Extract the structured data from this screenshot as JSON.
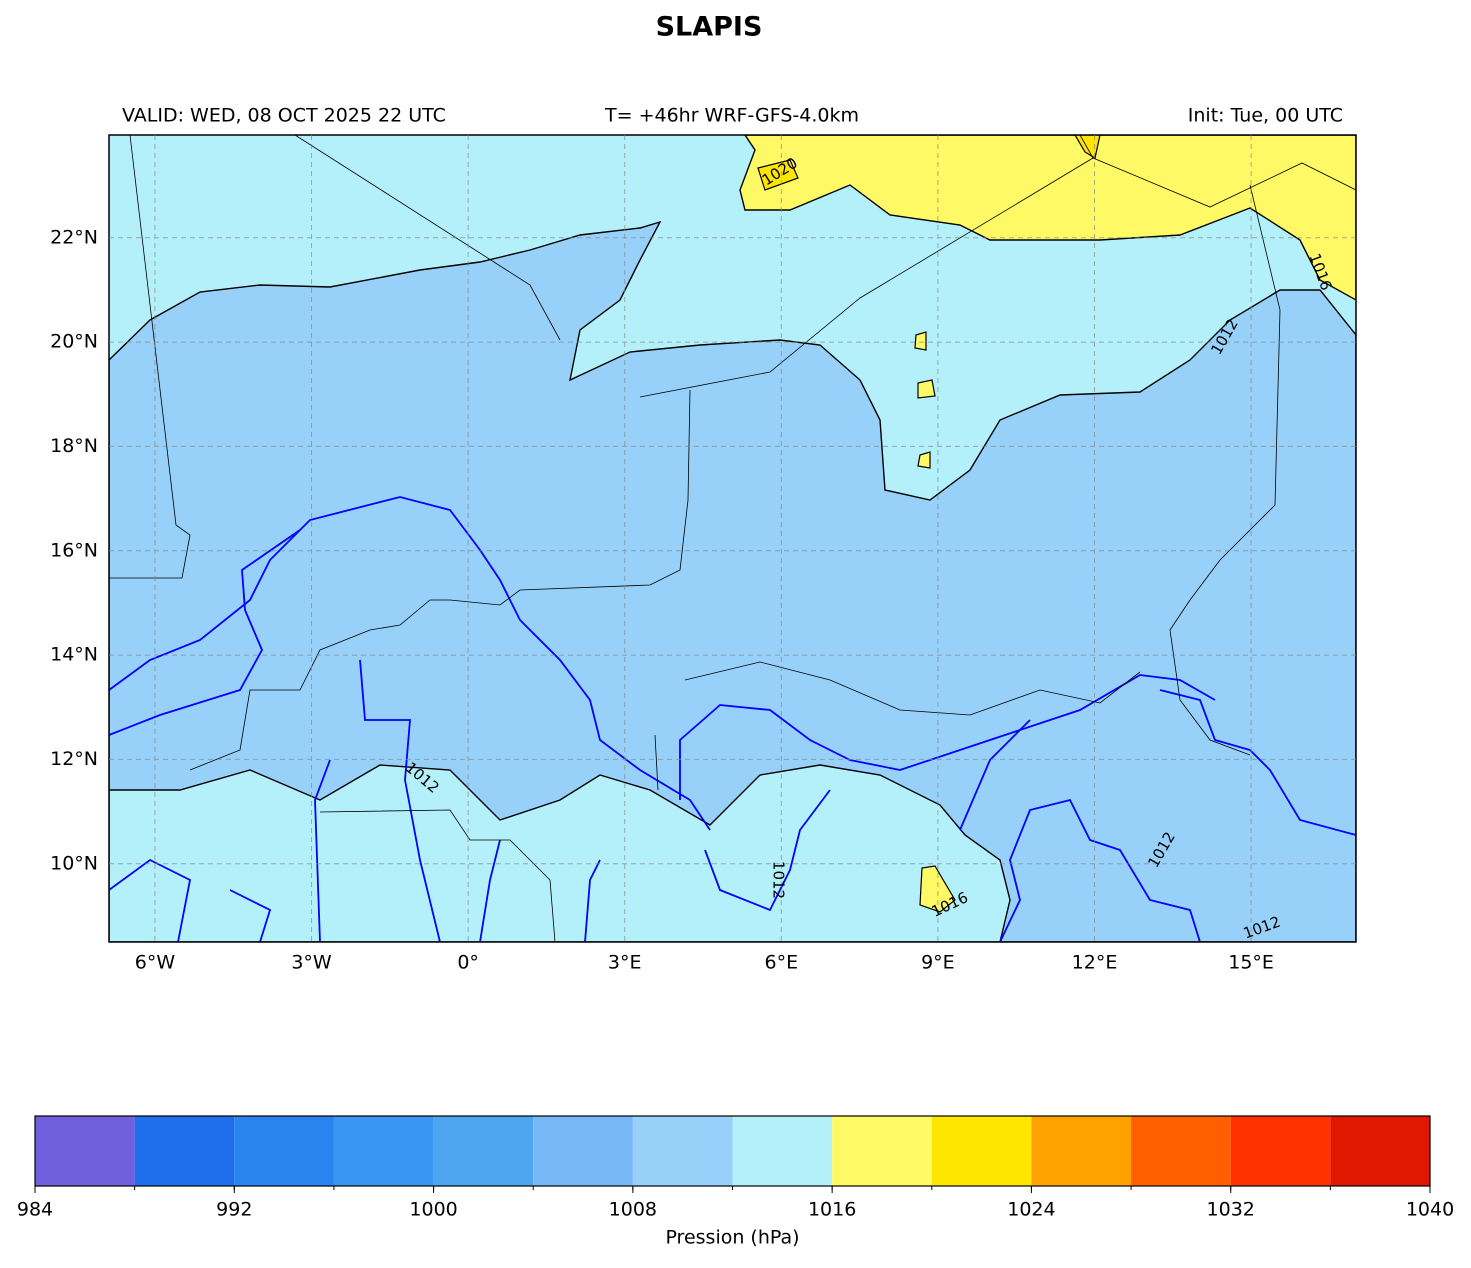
{
  "title": "SLAPIS",
  "header": {
    "valid": "VALID: WED, 08 OCT 2025 22 UTC",
    "run": "T= +46hr WRF-GFS-4.0km",
    "init": "Init: Tue, 00 UTC"
  },
  "map": {
    "xlim": [
      -6.88,
      17.01
    ],
    "ylim": [
      8.5,
      23.97
    ],
    "lon_ticks": [
      {
        "value": -6,
        "label": "6°W"
      },
      {
        "value": -3,
        "label": "3°W"
      },
      {
        "value": 0,
        "label": "0°"
      },
      {
        "value": 3,
        "label": "3°E"
      },
      {
        "value": 6,
        "label": "6°E"
      },
      {
        "value": 9,
        "label": "9°E"
      },
      {
        "value": 12,
        "label": "12°E"
      },
      {
        "value": 15,
        "label": "15°E"
      }
    ],
    "lat_ticks": [
      {
        "value": 10,
        "label": "10°N"
      },
      {
        "value": 12,
        "label": "12°N"
      },
      {
        "value": 14,
        "label": "14°N"
      },
      {
        "value": 16,
        "label": "16°N"
      },
      {
        "value": 18,
        "label": "18°N"
      },
      {
        "value": 20,
        "label": "20°N"
      },
      {
        "value": 22,
        "label": "22°N"
      }
    ],
    "contour_labels": [
      "1020",
      "1016",
      "1012",
      "1016",
      "1012",
      "1012",
      "1012",
      "1012"
    ]
  },
  "colorbar": {
    "label": "Pression (hPa)",
    "bins": [
      984,
      988,
      992,
      996,
      1000,
      1004,
      1008,
      1012,
      1016,
      1020,
      1024,
      1028,
      1032,
      1036,
      1040
    ],
    "colors": [
      "#715fdb",
      "#1f6fec",
      "#2a83ee",
      "#3b96f3",
      "#4ea6f0",
      "#76b8f7",
      "#97d0f9",
      "#b4f0fa",
      "#fff966",
      "#ffe600",
      "#ffa200",
      "#ff5f00",
      "#ff3200",
      "#e11800"
    ],
    "ticks": [
      984,
      992,
      1000,
      1008,
      1016,
      1024,
      1032,
      1040
    ]
  }
}
